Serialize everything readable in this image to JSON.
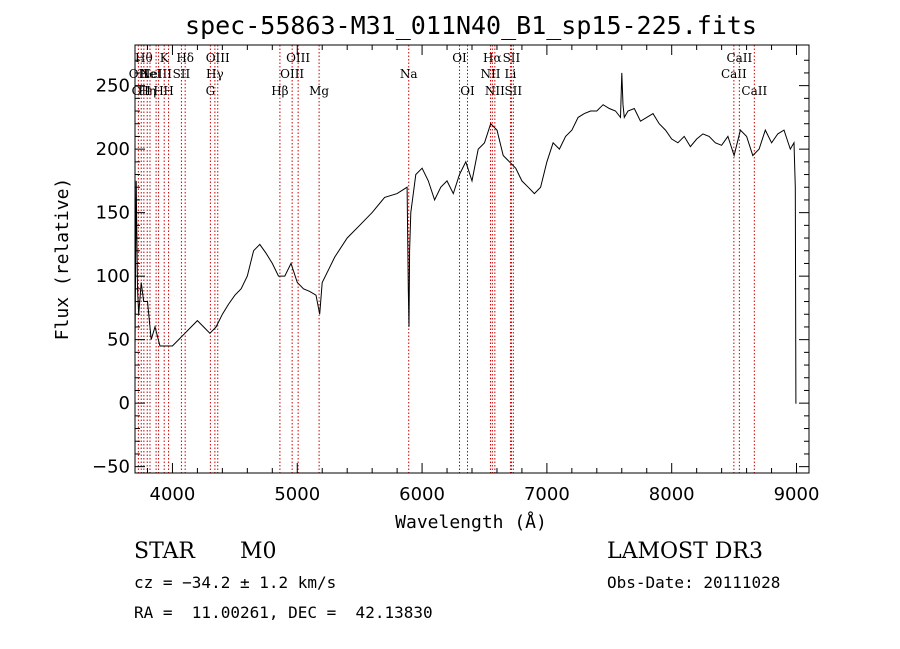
{
  "chart_data": {
    "type": "line",
    "title": "spec-55863-M31_011N40_B1_sp15-225.fits",
    "xlabel": "Wavelength (Å)",
    "ylabel": "Flux (relative)",
    "xlim": [
      3700,
      9100
    ],
    "ylim": [
      -55,
      282
    ],
    "xticks": [
      4000,
      5000,
      6000,
      7000,
      8000,
      9000
    ],
    "yticks": [
      -50,
      0,
      50,
      100,
      150,
      200,
      250
    ],
    "grid": false,
    "series": [
      {
        "x": [
          3700,
          3710,
          3720,
          3730,
          3750,
          3770,
          3800,
          3830,
          3860,
          3900,
          3950,
          4000,
          4050,
          4100,
          4150,
          4200,
          4250,
          4300,
          4350,
          4400,
          4450,
          4500,
          4550,
          4600,
          4650,
          4700,
          4750,
          4800,
          4850,
          4900,
          4950,
          5000,
          5050,
          5100,
          5150,
          5180,
          5200,
          5250,
          5300,
          5400,
          5500,
          5600,
          5700,
          5800,
          5880,
          5890,
          5895,
          5900,
          5910,
          5950,
          6000,
          6050,
          6100,
          6150,
          6200,
          6250,
          6300,
          6350,
          6400,
          6450,
          6500,
          6550,
          6600,
          6650,
          6700,
          6750,
          6800,
          6850,
          6900,
          6950,
          7000,
          7050,
          7100,
          7150,
          7200,
          7250,
          7300,
          7350,
          7400,
          7450,
          7500,
          7550,
          7590,
          7600,
          7610,
          7620,
          7650,
          7700,
          7750,
          7800,
          7850,
          7900,
          7950,
          8000,
          8050,
          8100,
          8150,
          8200,
          8250,
          8300,
          8350,
          8400,
          8450,
          8500,
          8550,
          8600,
          8650,
          8700,
          8750,
          8800,
          8850,
          8900,
          8950,
          8980,
          8990,
          8995,
          9000
        ],
        "y": [
          40,
          175,
          90,
          70,
          95,
          80,
          80,
          50,
          60,
          45,
          45,
          45,
          50,
          55,
          60,
          65,
          60,
          55,
          60,
          70,
          78,
          85,
          90,
          100,
          120,
          125,
          118,
          110,
          100,
          100,
          110,
          95,
          90,
          88,
          85,
          70,
          95,
          105,
          115,
          130,
          140,
          150,
          162,
          165,
          170,
          90,
          60,
          120,
          150,
          180,
          185,
          175,
          160,
          170,
          175,
          165,
          180,
          190,
          175,
          200,
          205,
          220,
          215,
          195,
          190,
          185,
          175,
          170,
          165,
          170,
          190,
          205,
          200,
          210,
          215,
          225,
          228,
          230,
          230,
          235,
          232,
          230,
          225,
          260,
          235,
          225,
          230,
          232,
          222,
          225,
          228,
          220,
          215,
          208,
          205,
          210,
          202,
          208,
          212,
          210,
          205,
          203,
          210,
          195,
          215,
          210,
          195,
          200,
          215,
          205,
          212,
          215,
          200,
          205,
          170,
          0,
          0
        ]
      }
    ],
    "lines": [
      {
        "wl": 3727,
        "labels": [
          {
            "t": "OII",
            "row": 2
          }
        ]
      },
      {
        "wl": 3750,
        "labels": [
          {
            "t": "OII",
            "row": 3
          }
        ]
      },
      {
        "wl": 3771,
        "labels": [
          {
            "t": "Hθ",
            "row": 1
          }
        ]
      },
      {
        "wl": 3798,
        "labels": [
          {
            "t": "Hη",
            "row": 3
          }
        ]
      },
      {
        "wl": 3820,
        "labels": [
          {
            "t": "HeI",
            "row": 2
          }
        ]
      },
      {
        "wl": 3869,
        "labels": [
          {
            "t": "NeIII",
            "row": 2
          }
        ]
      },
      {
        "wl": 3889,
        "labels": [
          {
            "t": "H",
            "row": 3
          }
        ]
      },
      {
        "wl": 3934,
        "labels": [
          {
            "t": "K",
            "row": 1
          }
        ]
      },
      {
        "wl": 3969,
        "labels": [
          {
            "t": "H",
            "row": 3
          }
        ]
      },
      {
        "wl": 4072,
        "labels": [
          {
            "t": "SII",
            "row": 2
          }
        ]
      },
      {
        "wl": 4102,
        "labels": [
          {
            "t": "Hδ",
            "row": 1
          }
        ]
      },
      {
        "wl": 4304,
        "labels": [
          {
            "t": "G",
            "row": 3
          }
        ]
      },
      {
        "wl": 4340,
        "labels": [
          {
            "t": "Hγ",
            "row": 2
          }
        ]
      },
      {
        "wl": 4363,
        "labels": [
          {
            "t": "OIII",
            "row": 1
          }
        ]
      },
      {
        "wl": 4861,
        "labels": [
          {
            "t": "Hβ",
            "row": 3
          }
        ]
      },
      {
        "wl": 4959,
        "labels": [
          {
            "t": "OIII",
            "row": 2
          }
        ]
      },
      {
        "wl": 5007,
        "labels": [
          {
            "t": "OIII",
            "row": 1
          }
        ]
      },
      {
        "wl": 5175,
        "labels": [
          {
            "t": "Mg",
            "row": 3
          }
        ]
      },
      {
        "wl": 5893,
        "labels": [
          {
            "t": "Na",
            "row": 2
          }
        ]
      },
      {
        "wl": 6300,
        "labels": [
          {
            "t": "OI",
            "row": 1
          }
        ]
      },
      {
        "wl": 6364,
        "labels": [
          {
            "t": "OI",
            "row": 3
          }
        ]
      },
      {
        "wl": 6548,
        "labels": [
          {
            "t": "NII",
            "row": 2
          }
        ]
      },
      {
        "wl": 6563,
        "labels": [
          {
            "t": "Hα",
            "row": 1
          }
        ]
      },
      {
        "wl": 6583,
        "labels": [
          {
            "t": "NII",
            "row": 3
          }
        ]
      },
      {
        "wl": 6708,
        "labels": [
          {
            "t": "Li",
            "row": 2
          }
        ]
      },
      {
        "wl": 6716,
        "labels": [
          {
            "t": "SII",
            "row": 1
          }
        ]
      },
      {
        "wl": 6731,
        "labels": [
          {
            "t": "SII",
            "row": 3
          }
        ]
      },
      {
        "wl": 8498,
        "labels": [
          {
            "t": "CaII",
            "row": 2
          }
        ]
      },
      {
        "wl": 8542,
        "labels": [
          {
            "t": "CaII",
            "row": 1
          }
        ]
      },
      {
        "wl": 8662,
        "labels": [
          {
            "t": "CaII",
            "row": 3
          }
        ]
      }
    ]
  },
  "info": {
    "class": "STAR",
    "subclass": "M0",
    "survey": "LAMOST DR3",
    "cz": "cz = −34.2 ± 1.2 km/s",
    "obsdate": "Obs-Date: 20111028",
    "radec": "RA =  11.00261, DEC =  42.13830"
  },
  "colors": {
    "line_markers": "#cc0000",
    "spectrum": "#000000"
  }
}
